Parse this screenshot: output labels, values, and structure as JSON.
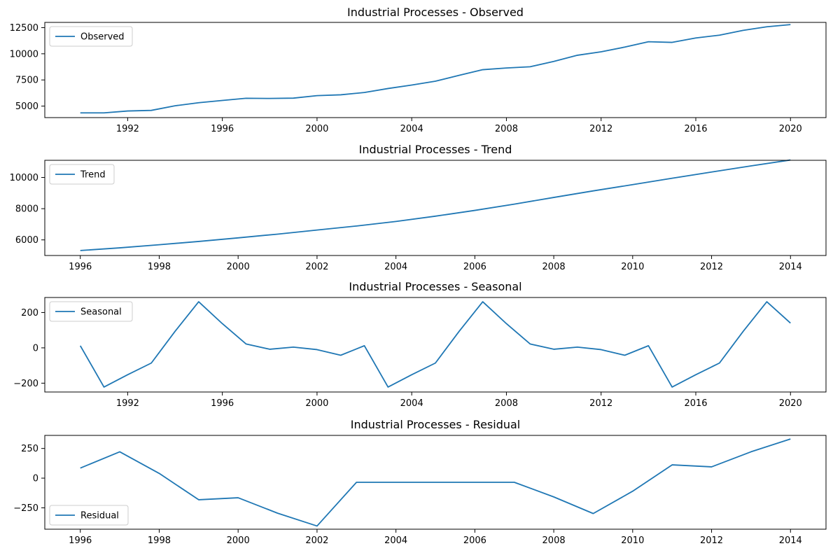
{
  "colors": {
    "line": "#1f77b4"
  },
  "chart_data": [
    {
      "type": "line",
      "title": "Industrial Processes  - Observed",
      "xlabel": "",
      "ylabel": "",
      "legend": "upper left",
      "xlim": [
        1988.5,
        2021.5
      ],
      "ylim": [
        3900,
        13000
      ],
      "xticks": [
        1992,
        1996,
        2000,
        2004,
        2008,
        2012,
        2016,
        2020
      ],
      "yticks": [
        5000,
        7500,
        10000,
        12500
      ],
      "series": [
        {
          "name": "Observed",
          "x": [
            1990,
            1991,
            1992,
            1993,
            1994,
            1995,
            1996,
            1997,
            1998,
            1999,
            2000,
            2001,
            2002,
            2003,
            2004,
            2005,
            2006,
            2007,
            2008,
            2009,
            2010,
            2011,
            2012,
            2013,
            2014,
            2015,
            2016,
            2017,
            2018,
            2019,
            2020
          ],
          "values": [
            4350,
            4350,
            4530,
            4590,
            5030,
            5320,
            5540,
            5750,
            5730,
            5760,
            6000,
            6080,
            6300,
            6680,
            7010,
            7380,
            7940,
            8480,
            8640,
            8760,
            9270,
            9860,
            10190,
            10640,
            11150,
            11090,
            11510,
            11780,
            12240,
            12580,
            12790
          ]
        }
      ]
    },
    {
      "type": "line",
      "title": "Industrial Processes  - Trend",
      "xlabel": "",
      "ylabel": "",
      "legend": "upper left",
      "xlim": [
        1995.1,
        2014.9
      ],
      "ylim": [
        5000,
        11100
      ],
      "xticks": [
        1996,
        1998,
        2000,
        2002,
        2004,
        2006,
        2008,
        2010,
        2012,
        2014
      ],
      "yticks": [
        6000,
        8000,
        10000
      ],
      "series": [
        {
          "name": "Trend",
          "x": [
            1996,
            1997,
            1998,
            1999,
            2000,
            2001,
            2002,
            2003,
            2004,
            2005,
            2006,
            2007,
            2008,
            2009,
            2010,
            2011,
            2012,
            2013,
            2014
          ],
          "values": [
            5320,
            5490,
            5690,
            5900,
            6130,
            6370,
            6630,
            6890,
            7180,
            7520,
            7890,
            8290,
            8720,
            9140,
            9540,
            9950,
            10350,
            10740,
            11120
          ]
        }
      ]
    },
    {
      "type": "line",
      "title": "Industrial Processes  - Seasonal",
      "xlabel": "",
      "ylabel": "",
      "legend": "upper left",
      "xlim": [
        1988.5,
        2021.5
      ],
      "ylim": [
        -250,
        285
      ],
      "xticks": [
        1992,
        1996,
        2000,
        2004,
        2008,
        2012,
        2016,
        2020
      ],
      "yticks": [
        -200,
        0,
        200
      ],
      "series": [
        {
          "name": "Seasonal",
          "x": [
            1990,
            1991,
            1992,
            1993,
            1994,
            1995,
            1996,
            1997,
            1998,
            1999,
            2000,
            2001,
            2002,
            2003,
            2004,
            2005,
            2006,
            2007,
            2008,
            2009,
            2010,
            2011,
            2012,
            2013,
            2014,
            2015,
            2016,
            2017,
            2018,
            2019,
            2020
          ],
          "values": [
            12,
            -222,
            -152,
            -86,
            93,
            261,
            137,
            22,
            -8,
            4,
            -10,
            -42,
            12,
            -222,
            -152,
            -86,
            93,
            261,
            137,
            22,
            -8,
            4,
            -10,
            -42,
            12,
            -222,
            -152,
            -86,
            93,
            261,
            140
          ]
        }
      ]
    },
    {
      "type": "line",
      "title": "Industrial Processes  - Residual",
      "xlabel": "",
      "ylabel": "",
      "legend": "lower left",
      "xlim": [
        1995.1,
        2014.9
      ],
      "ylim": [
        -430,
        360
      ],
      "xticks": [
        1996,
        1998,
        2000,
        2002,
        2004,
        2006,
        2008,
        2010,
        2012,
        2014
      ],
      "yticks": [
        -250,
        0,
        250
      ],
      "series": [
        {
          "name": "Residual",
          "x": [
            1996,
            1997,
            1998,
            1999,
            2000,
            2001,
            2002,
            2003,
            2004,
            2005,
            2006,
            2007,
            2008,
            2009,
            2010,
            2011,
            2012,
            2013,
            2014
          ],
          "values": [
            85,
            222,
            40,
            -182,
            -165,
            -295,
            -403,
            -35,
            -35,
            -35,
            -35,
            -35,
            -158,
            -298,
            -110,
            112,
            95,
            222,
            330
          ]
        }
      ]
    }
  ]
}
